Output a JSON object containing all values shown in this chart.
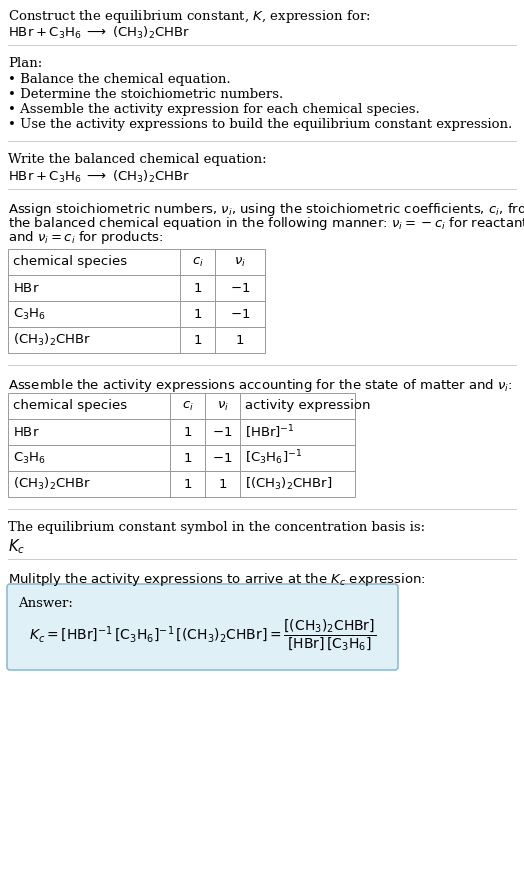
{
  "bg_color": "#ffffff",
  "text_color": "#000000",
  "answer_bg": "#dff0f7",
  "answer_border": "#90bcd0",
  "title_text": "Construct the equilibrium constant, $K$, expression for:",
  "reaction_line": "$\\mathrm{HBr} + \\mathrm{C_3H_6} \\;\\longrightarrow\\; (\\mathrm{CH_3})_2\\mathrm{CHBr}$",
  "plan_header": "Plan:",
  "plan_items": [
    "• Balance the chemical equation.",
    "• Determine the stoichiometric numbers.",
    "• Assemble the activity expression for each chemical species.",
    "• Use the activity expressions to build the equilibrium constant expression."
  ],
  "balanced_header": "Write the balanced chemical equation:",
  "balanced_eq": "$\\mathrm{HBr} + \\mathrm{C_3H_6} \\;\\longrightarrow\\; (\\mathrm{CH_3})_2\\mathrm{CHBr}$",
  "stoich_intro_parts": [
    "Assign stoichiometric numbers, $\\nu_i$, using the stoichiometric coefficients, $c_i$, from",
    "the balanced chemical equation in the following manner: $\\nu_i = -c_i$ for reactants",
    "and $\\nu_i = c_i$ for products:"
  ],
  "table1_headers": [
    "chemical species",
    "$c_i$",
    "$\\nu_i$"
  ],
  "table1_rows": [
    [
      "$\\mathrm{HBr}$",
      "1",
      "$-1$"
    ],
    [
      "$\\mathrm{C_3H_6}$",
      "1",
      "$-1$"
    ],
    [
      "$(\\mathrm{CH_3})_2\\mathrm{CHBr}$",
      "1",
      "1"
    ]
  ],
  "assemble_intro": "Assemble the activity expressions accounting for the state of matter and $\\nu_i$:",
  "table2_headers": [
    "chemical species",
    "$c_i$",
    "$\\nu_i$",
    "activity expression"
  ],
  "table2_rows": [
    [
      "$\\mathrm{HBr}$",
      "1",
      "$-1$",
      "$[\\mathrm{HBr}]^{-1}$"
    ],
    [
      "$\\mathrm{C_3H_6}$",
      "1",
      "$-1$",
      "$[\\mathrm{C_3H_6}]^{-1}$"
    ],
    [
      "$(\\mathrm{CH_3})_2\\mathrm{CHBr}$",
      "1",
      "1",
      "$[(\\mathrm{CH_3})_2\\mathrm{CHBr}]$"
    ]
  ],
  "kc_text": "The equilibrium constant symbol in the concentration basis is:",
  "kc_symbol": "$K_c$",
  "multiply_text": "Mulitply the activity expressions to arrive at the $K_c$ expression:",
  "answer_label": "Answer:",
  "answer_line1": "$K_c = [\\mathrm{HBr}]^{-1}\\,[\\mathrm{C_3H_6}]^{-1}\\,[(\\mathrm{CH_3})_2\\mathrm{CHBr}] = \\dfrac{[(\\mathrm{CH_3})_2\\mathrm{CHBr}]}{[\\mathrm{HBr}]\\,[\\mathrm{C_3H_6}]}$"
}
